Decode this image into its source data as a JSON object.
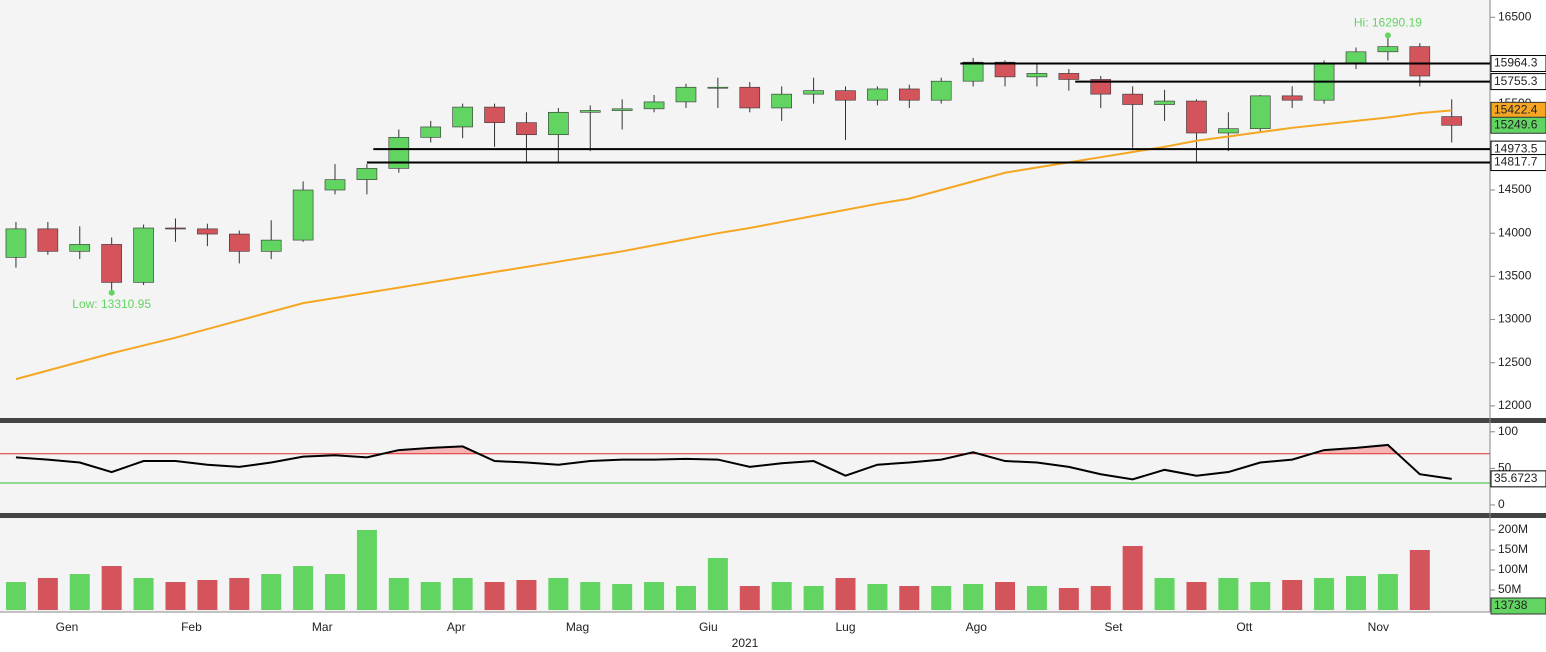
{
  "chart_data": [
    {
      "type": "candlestick",
      "open": [
        13720,
        14050,
        13790,
        13870,
        13430,
        14060,
        14050,
        13990,
        13790,
        13920,
        14500,
        14620,
        14750,
        15110,
        15230,
        15460,
        15280,
        15140,
        15400,
        15420,
        15440,
        15520,
        15690,
        15690,
        15450,
        15610,
        15650,
        15540,
        15670,
        15540,
        15760,
        15980,
        15810,
        15850,
        15780,
        15610,
        15490,
        15530,
        15160,
        15210,
        15590,
        15540,
        15960,
        16100,
        16160,
        15350
      ],
      "high": [
        14130,
        14130,
        14080,
        13950,
        14100,
        14170,
        14110,
        14030,
        14150,
        14600,
        14800,
        14800,
        15200,
        15300,
        15500,
        15500,
        15400,
        15450,
        15480,
        15550,
        15600,
        15730,
        15800,
        15750,
        15700,
        15800,
        15700,
        15700,
        15720,
        15800,
        16030,
        16000,
        15960,
        15900,
        15820,
        15700,
        15660,
        15550,
        15400,
        15600,
        15700,
        16000,
        16150,
        16290.19,
        16200,
        15550
      ],
      "low": [
        13600,
        13750,
        13700,
        13310.95,
        13400,
        13900,
        13850,
        13650,
        13700,
        13900,
        14450,
        14450,
        14700,
        15050,
        15100,
        15000,
        14820,
        14820,
        14950,
        15200,
        15400,
        15450,
        15450,
        15400,
        15300,
        15500,
        15080,
        15480,
        15450,
        15500,
        15700,
        15700,
        15700,
        15650,
        15450,
        14990,
        15300,
        14820,
        14950,
        15180,
        15450,
        15500,
        15900,
        16000,
        15700,
        15050
      ],
      "close": [
        14050,
        13790,
        13870,
        13430,
        14060,
        14050,
        13990,
        13790,
        13920,
        14500,
        14620,
        14750,
        15110,
        15230,
        15460,
        15280,
        15140,
        15400,
        15420,
        15440,
        15520,
        15690,
        15690,
        15450,
        15610,
        15650,
        15540,
        15670,
        15540,
        15760,
        15980,
        15810,
        15850,
        15780,
        15610,
        15490,
        15530,
        15160,
        15210,
        15590,
        15540,
        15960,
        16100,
        16160,
        15820,
        15249.6
      ],
      "up_color": "#62d462",
      "down_color": "#d4545c",
      "ma_values": [
        12310,
        12410,
        12510,
        12610,
        12700,
        12790,
        12890,
        12990,
        13090,
        13190,
        13250,
        13310,
        13370,
        13430,
        13490,
        13550,
        13610,
        13670,
        13730,
        13790,
        13860,
        13930,
        14000,
        14060,
        14130,
        14200,
        14270,
        14340,
        14400,
        14500,
        14600,
        14700,
        14760,
        14820,
        14880,
        14940,
        15000,
        15070,
        15120,
        15170,
        15220,
        15260,
        15300,
        15340,
        15390,
        15422.4
      ],
      "ma_color": "#f5a623",
      "levels": [
        15964.3,
        15755.3,
        14973.5,
        14817.7
      ],
      "hi_label": "Hi: 16290.19",
      "low_label": "Low: 13310.95",
      "ylim": [
        11860,
        16700
      ],
      "yticks": [
        12000,
        12500,
        13000,
        13500,
        14000,
        14500,
        15000,
        15500,
        16000,
        16500
      ],
      "xlim": [
        -0.5,
        46.2
      ],
      "xticks": [
        {
          "value": 1.6,
          "label": "Gen"
        },
        {
          "value": 5.5,
          "label": "Feb"
        },
        {
          "value": 9.6,
          "label": "Mar"
        },
        {
          "value": 13.8,
          "label": "Apr"
        },
        {
          "value": 17.6,
          "label": "Mag"
        },
        {
          "value": 21.7,
          "label": "Giu"
        },
        {
          "value": 26,
          "label": "Lug"
        },
        {
          "value": 30.1,
          "label": "Ago"
        },
        {
          "value": 34.4,
          "label": "Set"
        },
        {
          "value": 38.5,
          "label": "Ott"
        },
        {
          "value": 42.7,
          "label": "Nov"
        }
      ],
      "xlabel": "2021"
    },
    {
      "type": "line",
      "values": [
        65,
        62,
        58,
        45,
        60,
        60,
        55,
        52,
        58,
        66,
        68,
        65,
        75,
        78,
        80,
        60,
        58,
        55,
        60,
        62,
        62,
        63,
        62,
        52,
        57,
        60,
        40,
        55,
        58,
        62,
        72,
        60,
        58,
        52,
        42,
        35,
        48,
        40,
        45,
        58,
        62,
        75,
        78,
        82,
        42,
        35.6723
      ],
      "color": "#000000",
      "upper": 70,
      "lower": 30,
      "upper_color": "#e03030",
      "lower_color": "#2fbf2f",
      "ylim": [
        -11,
        112
      ],
      "yticks": [
        0,
        50,
        100
      ]
    },
    {
      "type": "bar",
      "values": [
        70,
        80,
        90,
        110,
        80,
        70,
        75,
        80,
        90,
        110,
        90,
        200,
        80,
        70,
        80,
        70,
        75,
        80,
        70,
        65,
        70,
        60,
        130,
        60,
        70,
        60,
        80,
        65,
        60,
        60,
        65,
        70,
        60,
        55,
        60,
        160,
        80,
        70,
        80,
        70,
        75,
        80,
        85,
        90,
        150,
        0.013738
      ],
      "last_value_label": "13738",
      "ylim": [
        -5,
        230
      ],
      "yticks": [
        {
          "value": 50,
          "label": "50M"
        },
        {
          "value": 100,
          "label": "100M"
        },
        {
          "value": 150,
          "label": "150M"
        },
        {
          "value": 200,
          "label": "200M"
        }
      ]
    }
  ]
}
